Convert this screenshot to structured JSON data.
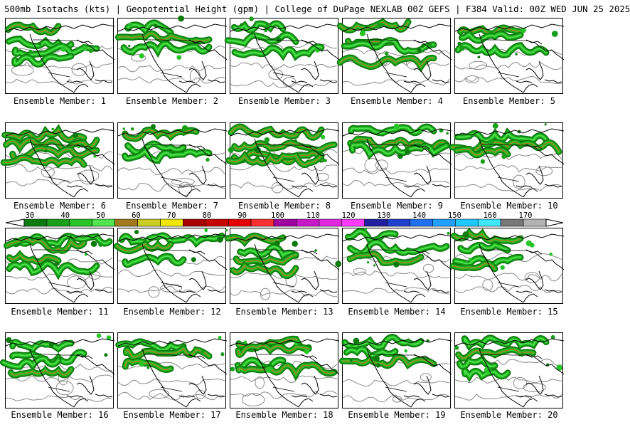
{
  "header": {
    "title": "500mb Isotachs (kts) | Geopotential Height (gpm) | College of DuPage NEXLAB   00Z GEFS | F384 Valid: 00Z WED JUN 25 2025"
  },
  "colorbar": {
    "labels": [
      "30",
      "40",
      "50",
      "60",
      "70",
      "80",
      "90",
      "100",
      "110",
      "120",
      "130",
      "140",
      "150",
      "160",
      "170"
    ],
    "colors": [
      "#0c7a0c",
      "#1a9f1a",
      "#28c428",
      "#50e450",
      "#a07a1c",
      "#cccc22",
      "#f0e800",
      "#a80000",
      "#c80000",
      "#e40000",
      "#ff3030",
      "#a000a0",
      "#c818c8",
      "#e028e0",
      "#ff3cff",
      "#2020a0",
      "#2040d0",
      "#2070f0",
      "#20a0ff",
      "#20c8ff",
      "#40e8ff",
      "#787878",
      "#b4b4b4"
    ]
  },
  "panels": [
    {
      "label": "Ensemble Member: 1"
    },
    {
      "label": "Ensemble Member: 2"
    },
    {
      "label": "Ensemble Member: 3"
    },
    {
      "label": "Ensemble Member: 4"
    },
    {
      "label": "Ensemble Member: 5"
    },
    {
      "label": "Ensemble Member: 6"
    },
    {
      "label": "Ensemble Member: 7"
    },
    {
      "label": "Ensemble Member: 8"
    },
    {
      "label": "Ensemble Member: 9"
    },
    {
      "label": "Ensemble Member: 10"
    },
    {
      "label": "Ensemble Member: 11"
    },
    {
      "label": "Ensemble Member: 12"
    },
    {
      "label": "Ensemble Member: 13"
    },
    {
      "label": "Ensemble Member: 14"
    },
    {
      "label": "Ensemble Member: 15"
    },
    {
      "label": "Ensemble Member: 16"
    },
    {
      "label": "Ensemble Member: 17"
    },
    {
      "label": "Ensemble Member: 18"
    },
    {
      "label": "Ensemble Member: 19"
    },
    {
      "label": "Ensemble Member: 20"
    }
  ]
}
